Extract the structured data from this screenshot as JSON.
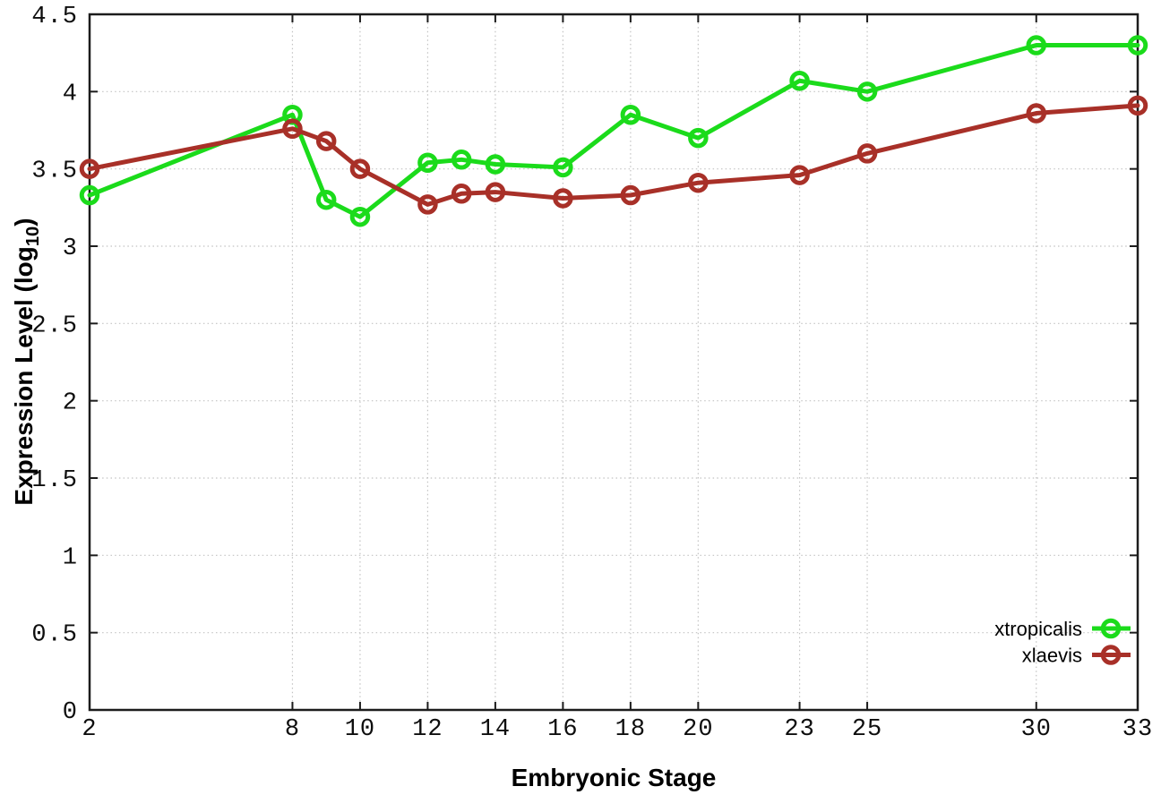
{
  "colors": {
    "background": "#ffffff",
    "axis": "#1c1c1c",
    "grid": "#c2c2c2",
    "tick_text": "#0e0e0e"
  },
  "chart_data": {
    "type": "line",
    "title": "",
    "xlabel": "Embryonic Stage",
    "ylabel": {
      "prefix": "Expression Level (log",
      "sub": "10",
      "suffix": ")"
    },
    "xlim": [
      2,
      33
    ],
    "ylim": [
      0,
      4.5
    ],
    "grid": true,
    "grid_style": "dotted",
    "legend_position": "inside-bottom-right",
    "x_ticks": [
      "2",
      "8",
      "10",
      "12",
      "14",
      "16",
      "18",
      "20",
      "23",
      "25",
      "30",
      "33"
    ],
    "x_tick_values": [
      2,
      8,
      10,
      12,
      14,
      16,
      18,
      20,
      23,
      25,
      30,
      33
    ],
    "y_ticks": [
      "0",
      "0.5",
      "1",
      "1.5",
      "2",
      "2.5",
      "3",
      "3.5",
      "4",
      "4.5"
    ],
    "y_tick_values": [
      0,
      0.5,
      1,
      1.5,
      2,
      2.5,
      3,
      3.5,
      4,
      4.5
    ],
    "x": [
      2,
      8,
      9,
      10,
      12,
      13,
      14,
      16,
      18,
      20,
      23,
      25,
      30,
      33
    ],
    "series": [
      {
        "name": "xtropicalis",
        "color": "#1bdb1b",
        "marker": "open-circle",
        "values": [
          3.33,
          3.85,
          3.3,
          3.19,
          3.54,
          3.56,
          3.53,
          3.51,
          3.85,
          3.7,
          4.07,
          4.0,
          4.3,
          4.3
        ]
      },
      {
        "name": "xlaevis",
        "color": "#a83028",
        "marker": "open-circle",
        "values": [
          3.5,
          3.76,
          3.68,
          3.5,
          3.27,
          3.34,
          3.35,
          3.31,
          3.33,
          3.41,
          3.46,
          3.6,
          3.86,
          3.91
        ]
      }
    ]
  }
}
